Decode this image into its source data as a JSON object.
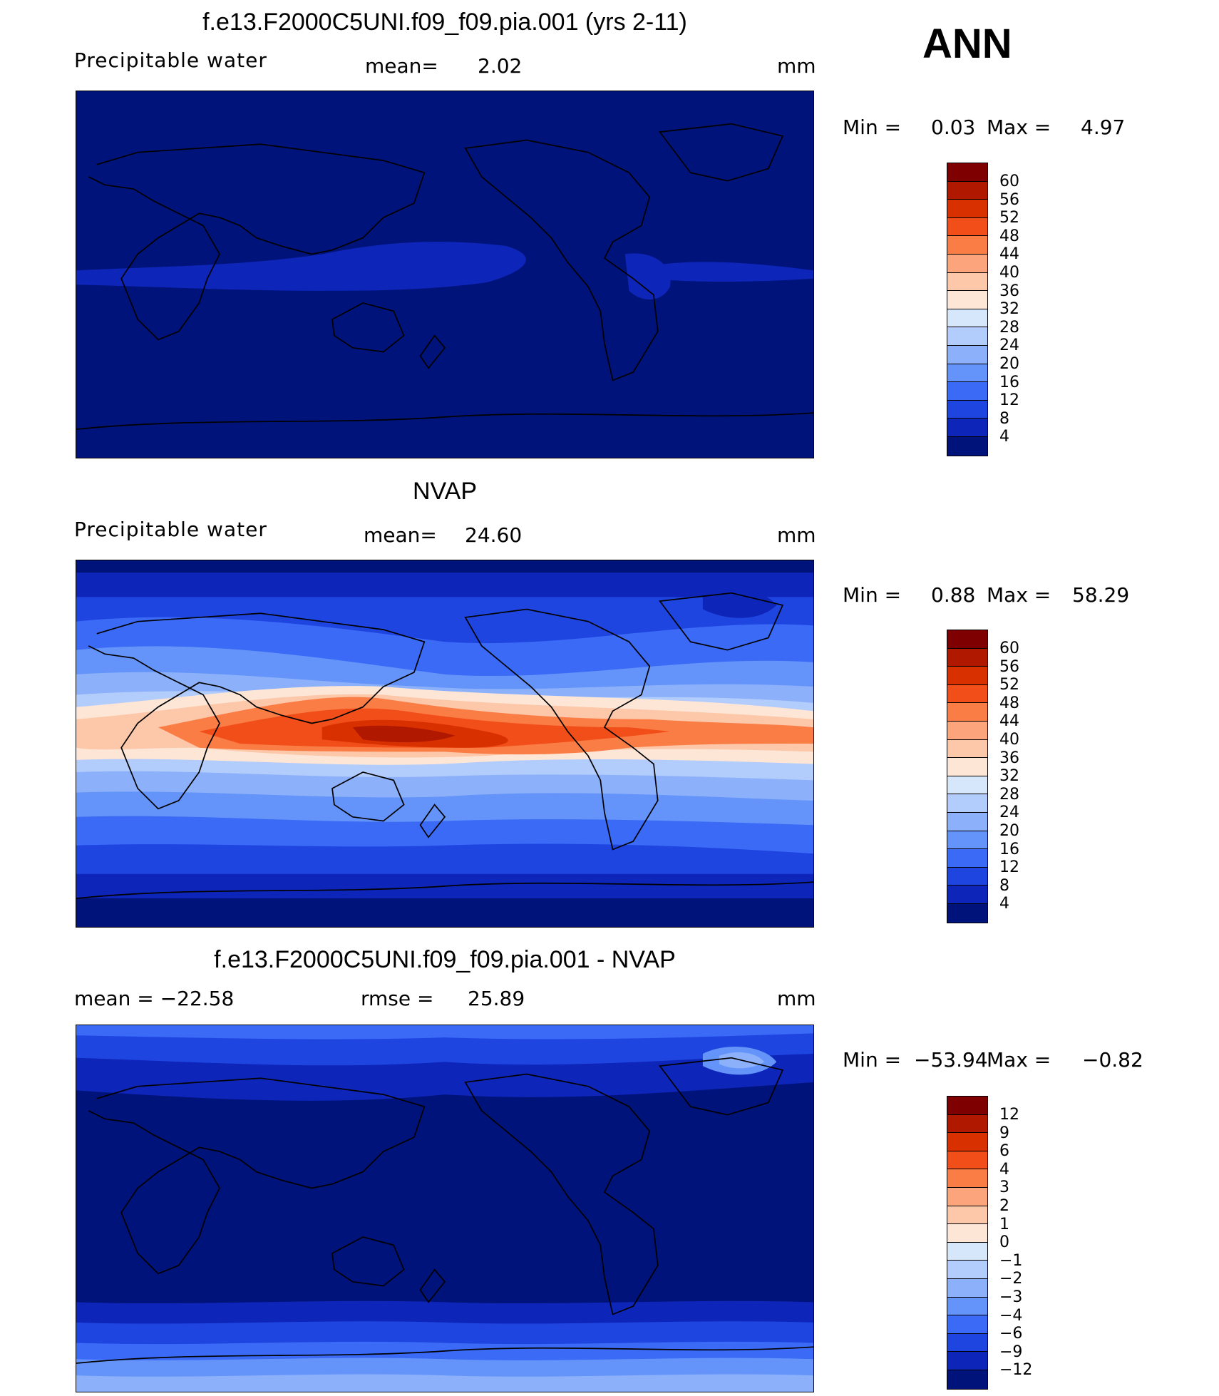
{
  "season": "ANN",
  "panels": [
    {
      "id": "model",
      "title": "f.e13.F2000C5UNI.f09_f09.pia.001 (yrs 2-11)",
      "variable": "Precipitable  water",
      "stat_label": "mean=",
      "stat_value": "2.02",
      "units": "mm",
      "min_label": "Min  =",
      "min_value": "0.03",
      "max_label": "Max  =",
      "max_value": "4.97",
      "field": "model",
      "colorbar": {
        "labels": [
          "60",
          "56",
          "52",
          "48",
          "44",
          "40",
          "36",
          "32",
          "28",
          "24",
          "20",
          "16",
          "12",
          "8",
          "4"
        ],
        "colors": [
          "#7f0000",
          "#b01800",
          "#d93000",
          "#f24e1a",
          "#fb7d46",
          "#fca47c",
          "#fdc8aa",
          "#fde6d6",
          "#d6e6fb",
          "#b2ccfb",
          "#8cb1fa",
          "#6494f9",
          "#3a6af6",
          "#1f45e0",
          "#0d25b8",
          "#00137a"
        ]
      }
    },
    {
      "id": "obs",
      "title": "NVAP",
      "variable": "Precipitable  water",
      "stat_label": "mean=",
      "stat_value": "24.60",
      "units": "mm",
      "min_label": "Min  =",
      "min_value": "0.88",
      "max_label": "Max  =",
      "max_value": "58.29",
      "field": "obs",
      "colorbar": {
        "labels": [
          "60",
          "56",
          "52",
          "48",
          "44",
          "40",
          "36",
          "32",
          "28",
          "24",
          "20",
          "16",
          "12",
          "8",
          "4"
        ],
        "colors": [
          "#7f0000",
          "#b01800",
          "#d93000",
          "#f24e1a",
          "#fb7d46",
          "#fca47c",
          "#fdc8aa",
          "#fde6d6",
          "#d6e6fb",
          "#b2ccfb",
          "#8cb1fa",
          "#6494f9",
          "#3a6af6",
          "#1f45e0",
          "#0d25b8",
          "#00137a"
        ]
      }
    },
    {
      "id": "diff",
      "title": "f.e13.F2000C5UNI.f09_f09.pia.001 - NVAP",
      "variable": "mean  =  −22.58",
      "stat_label": "rmse  =",
      "stat_value": "25.89",
      "units": "mm",
      "min_label": "Min  =",
      "min_value": "−53.94",
      "max_label": "Max  =",
      "max_value": "−0.82",
      "field": "diff",
      "colorbar": {
        "labels": [
          "12",
          "9",
          "6",
          "4",
          "3",
          "2",
          "1",
          "0",
          "−1",
          "−2",
          "−3",
          "−4",
          "−6",
          "−9",
          "−12"
        ],
        "colors": [
          "#7f0000",
          "#b01800",
          "#d93000",
          "#f24e1a",
          "#fb7d46",
          "#fca47c",
          "#fdc8aa",
          "#fde6d6",
          "#d6e6fb",
          "#b2ccfb",
          "#8cb1fa",
          "#6494f9",
          "#3a6af6",
          "#1f45e0",
          "#0d25b8",
          "#00137a"
        ]
      }
    }
  ]
}
